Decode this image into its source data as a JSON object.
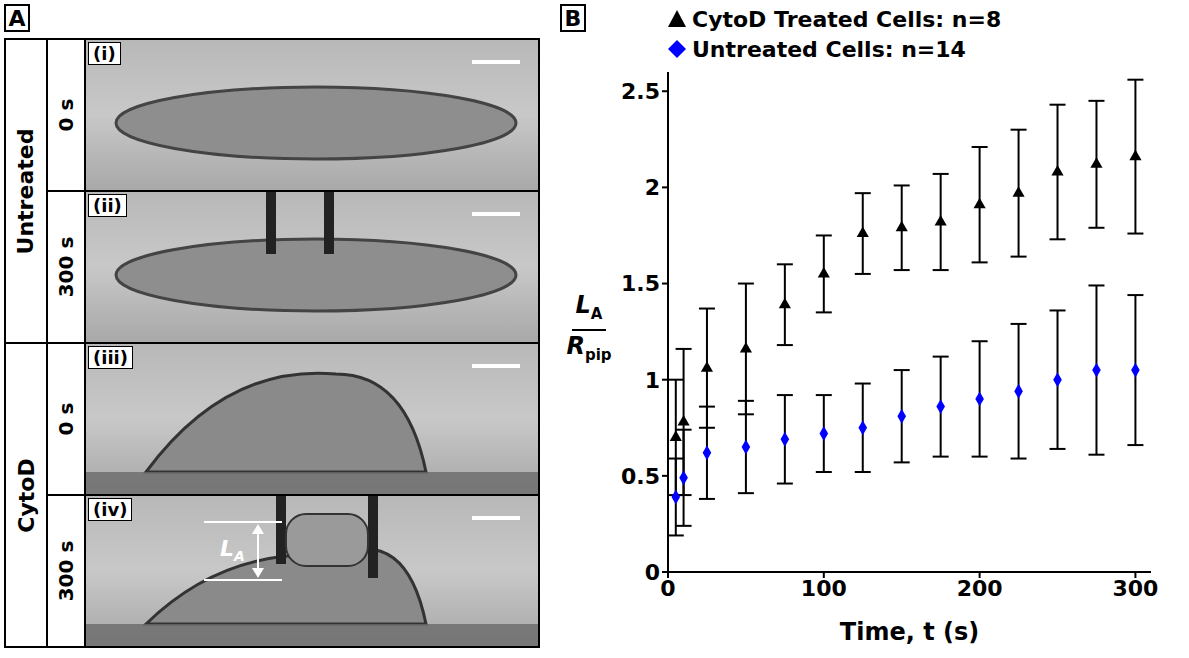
{
  "panel_a": {
    "letter": "A",
    "groups": [
      {
        "name": "Untreated",
        "rows": [
          {
            "time": "0 s",
            "label": "(i)"
          },
          {
            "time": "300 s",
            "label": "(ii)"
          }
        ]
      },
      {
        "name": "CytoD",
        "rows": [
          {
            "time": "0 s",
            "label": "(iii)"
          },
          {
            "time": "300 s",
            "label": "(iv)",
            "annotation": [
              "L",
              "A"
            ]
          }
        ]
      }
    ]
  },
  "panel_b": {
    "letter": "B"
  },
  "chart_data": {
    "type": "scatter",
    "x_label": "Time, t (s)",
    "y_label": {
      "numerator": [
        "L",
        "A"
      ],
      "denominator": [
        "R",
        "pip"
      ]
    },
    "x": [
      5,
      10,
      25,
      50,
      75,
      100,
      125,
      150,
      175,
      200,
      225,
      250,
      275,
      300
    ],
    "series": [
      {
        "name": "CytoD Treated Cells: n=8",
        "color": "#000000",
        "marker": "triangle",
        "values": [
          0.7,
          0.78,
          1.06,
          1.16,
          1.39,
          1.55,
          1.76,
          1.79,
          1.82,
          1.91,
          1.97,
          2.08,
          2.12,
          2.16
        ],
        "errors": [
          0.3,
          0.38,
          0.31,
          0.34,
          0.21,
          0.2,
          0.21,
          0.22,
          0.25,
          0.3,
          0.33,
          0.35,
          0.33,
          0.4
        ]
      },
      {
        "name": "Untreated Cells: n=14",
        "color": "#0000ff",
        "marker": "diamond",
        "values": [
          0.39,
          0.49,
          0.62,
          0.65,
          0.69,
          0.72,
          0.75,
          0.81,
          0.86,
          0.9,
          0.94,
          1.0,
          1.05,
          1.05
        ],
        "errors": [
          0.2,
          0.25,
          0.24,
          0.24,
          0.23,
          0.2,
          0.23,
          0.24,
          0.26,
          0.3,
          0.35,
          0.36,
          0.44,
          0.39
        ]
      }
    ],
    "xlim": [
      0,
      310
    ],
    "xticks": [
      0,
      100,
      200,
      300
    ],
    "ylim": [
      0,
      2.6
    ],
    "yticks": [
      0,
      0.5,
      1,
      1.5,
      2,
      2.5
    ],
    "grid": false,
    "legend": "top"
  }
}
